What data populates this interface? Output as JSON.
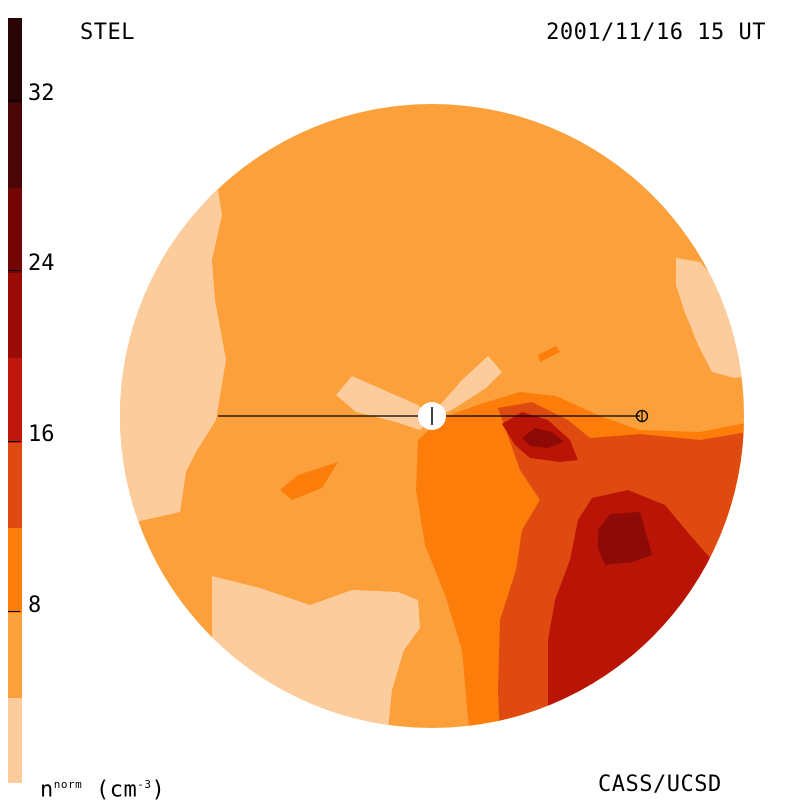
{
  "header": {
    "left_title": "STEL",
    "right_title": "2001/11/16 15 UT"
  },
  "footer": {
    "units_prefix": "n",
    "units_sup": "norm",
    "units_suffix": "(cm",
    "units_exp": "-3",
    "units_close": ")",
    "credit": "CASS/UCSD"
  },
  "colorbar": {
    "ticks": [
      "32",
      "24",
      "16",
      "8"
    ],
    "colors": [
      "#2a0505",
      "#4a0606",
      "#730505",
      "#9a0a06",
      "#bf170c",
      "#de4a10",
      "#fc7d0a",
      "#fba03a",
      "#fdcc9c"
    ]
  },
  "map": {
    "background": "#fba03a",
    "colors": {
      "light": "#fdcc9c",
      "base": "#fba03a",
      "orange": "#fc7d0a",
      "dark_orange": "#de4a10",
      "red": "#b91406",
      "dark_red": "#8e0a06"
    }
  }
}
